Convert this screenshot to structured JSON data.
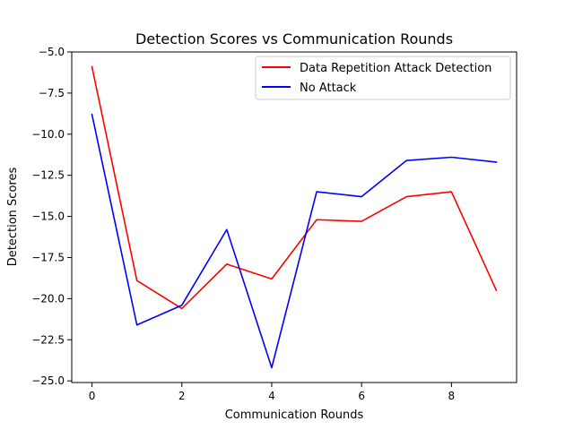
{
  "chart_data": {
    "type": "line",
    "title": "Detection Scores vs Communication Rounds",
    "xlabel": "Communication Rounds",
    "ylabel": "Detection Scores",
    "x": [
      0,
      1,
      2,
      3,
      4,
      5,
      6,
      7,
      8,
      9
    ],
    "xlim": [
      -0.45,
      9.45
    ],
    "ylim": [
      -25.1,
      -5.0
    ],
    "xticks": [
      0,
      2,
      4,
      6,
      8
    ],
    "xtick_labels": [
      "0",
      "2",
      "4",
      "6",
      "8"
    ],
    "yticks": [
      -5.0,
      -7.5,
      -10.0,
      -12.5,
      -15.0,
      -17.5,
      -20.0,
      -22.5,
      -25.0
    ],
    "ytick_labels": [
      "−5.0",
      "−7.5",
      "−10.0",
      "−12.5",
      "−15.0",
      "−17.5",
      "−20.0",
      "−22.5",
      "−25.0"
    ],
    "grid": false,
    "legend_position": "top-right",
    "series": [
      {
        "name": "Data Repetition Attack Detection",
        "color": "#ff0000",
        "values": [
          -5.9,
          -18.9,
          -20.6,
          -17.9,
          -18.8,
          -15.2,
          -15.3,
          -13.8,
          -13.5,
          -19.5
        ]
      },
      {
        "name": "No Attack",
        "color": "#0000ff",
        "values": [
          -8.8,
          -21.6,
          -20.4,
          -15.8,
          -24.2,
          -13.5,
          -13.8,
          -11.6,
          -11.4,
          -11.7
        ]
      }
    ]
  }
}
